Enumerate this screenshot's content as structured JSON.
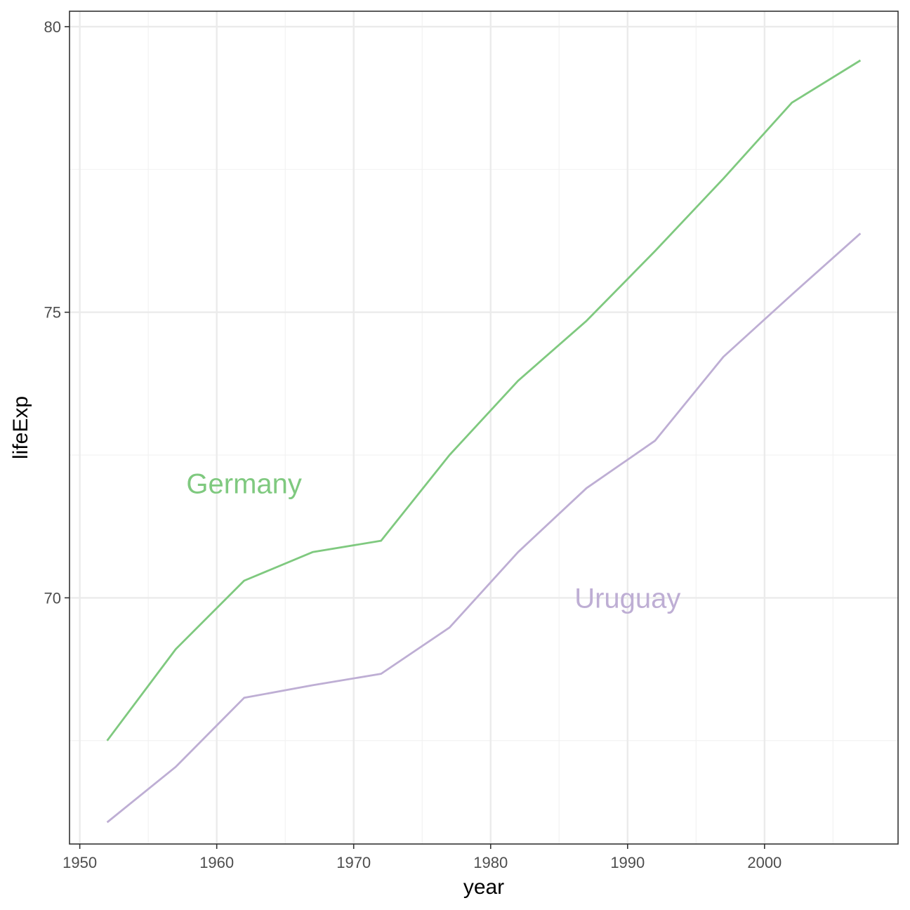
{
  "chart_data": {
    "type": "line",
    "title": "",
    "xlabel": "year",
    "ylabel": "lifeExp",
    "xlim": [
      1949.25,
      2009.75
    ],
    "ylim": [
      65.69,
      80.27
    ],
    "x_ticks": [
      1950,
      1960,
      1970,
      1980,
      1990,
      2000
    ],
    "x_minor_ticks": [
      1955,
      1965,
      1975,
      1985,
      1995,
      2005
    ],
    "y_ticks": [
      70,
      75,
      80
    ],
    "y_minor_ticks": [
      67.5,
      72.5,
      77.5
    ],
    "grid": true,
    "legend": "none (direct labels)",
    "x": [
      1952,
      1957,
      1962,
      1967,
      1972,
      1977,
      1982,
      1987,
      1992,
      1997,
      2002,
      2007
    ],
    "series": [
      {
        "name": "Germany",
        "color": "#7fc97f",
        "values": [
          67.5,
          69.1,
          70.3,
          70.8,
          71.0,
          72.5,
          73.8,
          74.85,
          76.07,
          77.34,
          78.67,
          79.41
        ],
        "label_position": {
          "x": 1962,
          "y": 72.0
        }
      },
      {
        "name": "Uruguay",
        "color": "#beaed4",
        "values": [
          66.07,
          67.04,
          68.25,
          68.47,
          68.67,
          69.48,
          70.8,
          71.92,
          72.75,
          74.22,
          75.31,
          76.38
        ],
        "label_position": {
          "x": 1990,
          "y": 70.0
        }
      }
    ]
  }
}
